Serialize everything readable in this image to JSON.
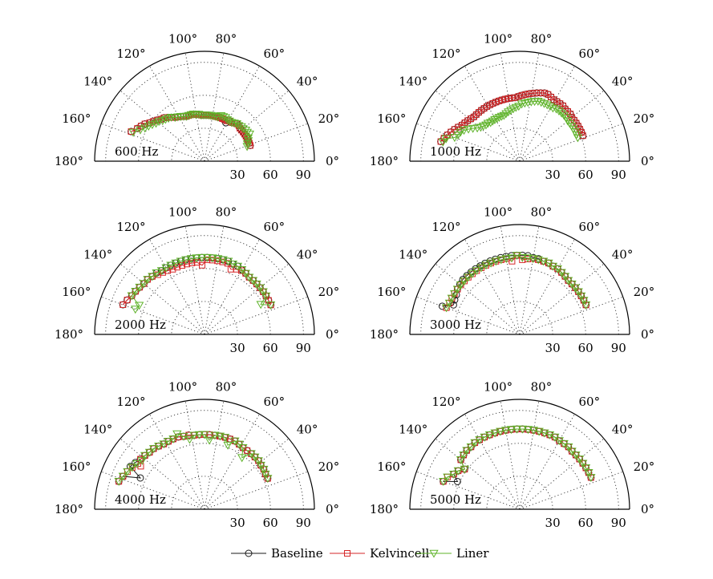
{
  "chart_data": {
    "type": "polar",
    "angular_ticks": [
      "0°",
      "20°",
      "40°",
      "60°",
      "80°",
      "100°",
      "120°",
      "140°",
      "160°",
      "180°"
    ],
    "radial_ticks": [
      "30",
      "60",
      "90"
    ],
    "rlim": [
      0,
      100
    ],
    "grid": true,
    "legend_position": "bottom",
    "series": [
      {
        "name": "Baseline",
        "color": "#1a1a1a",
        "marker": "circle"
      },
      {
        "name": "Kelvincell",
        "color": "#d62728",
        "marker": "square"
      },
      {
        "name": "Liner",
        "color": "#5fb32a",
        "marker": "triangle-down"
      }
    ],
    "panels": [
      {
        "label": "600 Hz",
        "theta": [
          158,
          154,
          151,
          148,
          145,
          142,
          139,
          136,
          133,
          130,
          127,
          124,
          121,
          118,
          115,
          112,
          109,
          106,
          103,
          100,
          97,
          94,
          91,
          88,
          85,
          82,
          79,
          76,
          73,
          70,
          67,
          64,
          61,
          58,
          55,
          52,
          49,
          46,
          43,
          40,
          37,
          34,
          31,
          28,
          25,
          22,
          19
        ],
        "r": {
          "Baseline": [
            72,
            68,
            66,
            64,
            61,
            59,
            57,
            55,
            54,
            52,
            50,
            48,
            47,
            46,
            45,
            44,
            44,
            44,
            44,
            43,
            43,
            42,
            42,
            42,
            42,
            42,
            42,
            42,
            42,
            42,
            42,
            42,
            40,
            43,
            43,
            44,
            45,
            45,
            44,
            44,
            44,
            44,
            44,
            44,
            44,
            44,
            44
          ],
          "Kelvincell": [
            72,
            68,
            66,
            64,
            61,
            59,
            57,
            55,
            54,
            52,
            50,
            48,
            47,
            46,
            45,
            44,
            44,
            44,
            44,
            43,
            43,
            42,
            42,
            42,
            42,
            42,
            42,
            42,
            42,
            42,
            42,
            42,
            42,
            43,
            43,
            44,
            45,
            45,
            44,
            44,
            44,
            44,
            44,
            44,
            44,
            44,
            44
          ],
          "Liner": [
            70,
            65,
            62,
            60,
            58,
            56,
            55,
            53,
            52,
            51,
            50,
            48,
            47,
            46,
            45,
            44,
            44,
            44,
            44,
            43,
            43,
            42,
            42,
            42,
            42,
            42,
            42,
            42,
            42,
            44,
            44,
            44,
            43,
            43,
            43,
            44,
            45,
            45,
            46,
            46,
            47,
            47,
            48,
            45,
            44,
            42,
            41
          ]
        }
      },
      {
        "label": "1000 Hz",
        "theta": [
          166,
          163,
          160,
          157,
          154,
          151,
          148,
          145,
          142,
          139,
          136,
          133,
          130,
          127,
          124,
          121,
          118,
          115,
          112,
          109,
          106,
          103,
          100,
          97,
          94,
          91,
          88,
          85,
          82,
          79,
          76,
          73,
          70,
          67,
          64,
          61,
          58,
          55,
          52,
          49,
          46,
          43,
          40,
          37,
          34,
          31,
          28,
          25,
          22
        ],
        "r": {
          "Baseline": [
            74,
            72,
            70,
            68,
            66,
            64,
            62,
            61,
            60,
            59,
            58,
            58,
            58,
            58,
            58,
            58,
            58,
            58,
            58,
            58,
            58,
            58,
            58,
            58,
            58,
            59,
            60,
            61,
            62,
            63,
            64,
            65,
            66,
            66,
            65,
            64,
            64,
            64,
            64,
            63,
            63,
            63,
            62,
            62,
            62,
            62,
            62,
            62,
            62
          ],
          "Kelvincell": [
            74,
            72,
            70,
            68,
            66,
            64,
            62,
            61,
            60,
            59,
            58,
            58,
            58,
            58,
            58,
            58,
            58,
            58,
            58,
            58,
            58,
            58,
            58,
            58,
            58,
            59,
            60,
            61,
            62,
            63,
            64,
            65,
            66,
            66,
            65,
            64,
            64,
            64,
            64,
            63,
            63,
            63,
            62,
            62,
            62,
            62,
            62,
            62,
            62
          ],
          "Liner": [
            72,
            70,
            63,
            61,
            60,
            58,
            55,
            52,
            49,
            47,
            46,
            45,
            45,
            44,
            44,
            44,
            44,
            44,
            44,
            44,
            45,
            46,
            47,
            48,
            49,
            50,
            52,
            53,
            54,
            55,
            56,
            57,
            57,
            57,
            57,
            57,
            57,
            58,
            58,
            58,
            58,
            58,
            57,
            57,
            57,
            57,
            57,
            57,
            57
          ]
        }
      },
      {
        "label": "2000 Hz",
        "theta": [
          160,
          156,
          152,
          148,
          144,
          140,
          136,
          132,
          128,
          124,
          120,
          116,
          112,
          108,
          104,
          100,
          96,
          92,
          88,
          84,
          80,
          76,
          72,
          68,
          64,
          60,
          56,
          52,
          48,
          44,
          40,
          36,
          32,
          28,
          24
        ],
        "r": {
          "Baseline": [
            79,
            77,
            75,
            74,
            73,
            72,
            72,
            71,
            71,
            70,
            70,
            70,
            70,
            70,
            70,
            70,
            70,
            70,
            70,
            70,
            70,
            70,
            70,
            69,
            69,
            68,
            67,
            66,
            66,
            66,
            66,
            66,
            66,
            66,
            66
          ],
          "Kelvincell": [
            79,
            77,
            75,
            74,
            73,
            72,
            72,
            71,
            69,
            68,
            67,
            66,
            66,
            66,
            66,
            66,
            66,
            63,
            68,
            68,
            68,
            68,
            68,
            64,
            66,
            67,
            67,
            66,
            66,
            66,
            66,
            66,
            66,
            66,
            66
          ],
          "Liner": [
            67,
            65,
            75,
            74,
            73,
            72,
            72,
            71,
            71,
            70,
            70,
            70,
            70,
            70,
            70,
            70,
            70,
            70,
            70,
            70,
            70,
            70,
            70,
            69,
            69,
            68,
            67,
            66,
            66,
            66,
            66,
            66,
            66,
            58,
            66
          ]
        }
      },
      {
        "label": "3000 Hz",
        "theta": [
          160,
          156,
          152,
          148,
          144,
          140,
          136,
          132,
          128,
          124,
          120,
          116,
          112,
          108,
          104,
          100,
          96,
          92,
          88,
          84,
          80,
          76,
          72,
          68,
          64,
          60,
          56,
          52,
          48,
          44,
          40,
          36,
          32,
          28,
          24
        ],
        "r": {
          "Baseline": [
            75,
            66,
            67,
            68,
            70,
            71,
            72,
            72,
            72,
            72,
            72,
            72,
            72,
            72,
            72,
            72,
            72,
            72,
            72,
            72,
            71,
            71,
            70,
            70,
            69,
            69,
            68,
            67,
            66,
            66,
            66,
            66,
            66,
            66,
            66
          ],
          "Kelvincell": [
            71,
            70,
            70,
            70,
            70,
            70,
            70,
            70,
            70,
            70,
            70,
            70,
            70,
            70,
            70,
            70,
            67,
            72,
            68,
            69,
            70,
            70,
            70,
            70,
            69,
            69,
            68,
            67,
            66,
            66,
            66,
            66,
            66,
            66,
            66
          ],
          "Liner": [
            71,
            70,
            70,
            70,
            70,
            70,
            70,
            70,
            70,
            70,
            70,
            70,
            70,
            70,
            70,
            70,
            70,
            72,
            70,
            70,
            70,
            70,
            70,
            70,
            69,
            69,
            68,
            67,
            66,
            66,
            66,
            66,
            66,
            66,
            66
          ]
        }
      },
      {
        "label": "4000 Hz",
        "theta": [
          162,
          158,
          154,
          150,
          146,
          142,
          138,
          134,
          130,
          126,
          122,
          118,
          114,
          110,
          106,
          102,
          98,
          94,
          90,
          86,
          82,
          78,
          74,
          70,
          66,
          62,
          58,
          54,
          50,
          46,
          42,
          38,
          34,
          30,
          26
        ],
        "r": {
          "Baseline": [
            82,
            80,
            65,
            78,
            76,
            74,
            73,
            72,
            72,
            71,
            70,
            70,
            70,
            70,
            69,
            69,
            68,
            68,
            68,
            68,
            68,
            68,
            68,
            68,
            68,
            67,
            66,
            66,
            66,
            66,
            66,
            65,
            65,
            64,
            64
          ],
          "Kelvincell": [
            82,
            80,
            78,
            76,
            70,
            74,
            73,
            72,
            72,
            71,
            70,
            70,
            70,
            70,
            69,
            69,
            68,
            68,
            68,
            68,
            68,
            68,
            68,
            68,
            68,
            67,
            66,
            66,
            66,
            66,
            66,
            65,
            65,
            64,
            64
          ],
          "Liner": [
            82,
            80,
            78,
            76,
            74,
            72,
            73,
            72,
            72,
            71,
            70,
            70,
            70,
            73,
            69,
            65,
            68,
            68,
            68,
            63,
            68,
            68,
            68,
            62,
            68,
            67,
            66,
            58,
            66,
            66,
            66,
            65,
            65,
            64,
            64
          ]
        }
      },
      {
        "label": "5000 Hz",
        "theta": [
          160,
          156,
          152,
          148,
          144,
          140,
          136,
          132,
          128,
          124,
          120,
          116,
          112,
          108,
          104,
          100,
          96,
          92,
          88,
          84,
          80,
          76,
          72,
          68,
          64,
          60,
          56,
          52,
          48,
          44,
          40,
          36,
          32,
          28,
          24
        ],
        "r": {
          "Baseline": [
            74,
            62,
            68,
            66,
            62,
            70,
            71,
            72,
            72,
            73,
            73,
            73,
            73,
            73,
            73,
            73,
            73,
            73,
            73,
            73,
            73,
            73,
            73,
            73,
            73,
            72,
            72,
            72,
            71,
            71,
            71,
            71,
            71,
            71,
            71
          ],
          "Kelvincell": [
            74,
            72,
            68,
            66,
            62,
            70,
            71,
            72,
            72,
            73,
            73,
            73,
            73,
            73,
            73,
            73,
            73,
            73,
            73,
            73,
            73,
            73,
            73,
            73,
            73,
            72,
            72,
            72,
            71,
            71,
            71,
            71,
            71,
            71,
            71
          ],
          "Liner": [
            74,
            72,
            68,
            66,
            62,
            70,
            71,
            72,
            72,
            73,
            73,
            73,
            73,
            73,
            73,
            73,
            73,
            73,
            73,
            73,
            73,
            73,
            73,
            73,
            73,
            72,
            72,
            72,
            71,
            71,
            71,
            71,
            71,
            71,
            71
          ]
        }
      }
    ]
  }
}
